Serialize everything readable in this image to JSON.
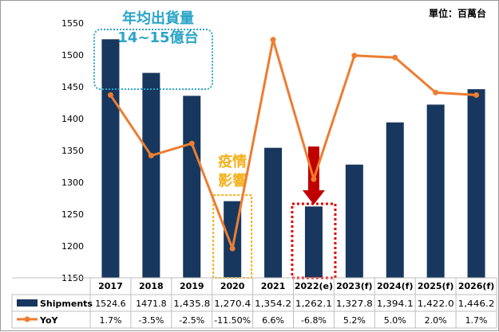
{
  "chart_data": {
    "type": "bar+line",
    "unit_label": "單位：百萬台",
    "categories": [
      "2017",
      "2018",
      "2019",
      "2020",
      "2021",
      "2022(e)",
      "2023(f)",
      "2024(f)",
      "2025(f)",
      "2026(f)"
    ],
    "ylim": [
      1150,
      1550
    ],
    "yticks": [
      1150,
      1200,
      1250,
      1300,
      1350,
      1400,
      1450,
      1500,
      1550
    ],
    "series": [
      {
        "name": "Shipments",
        "kind": "bar",
        "color": "#17375e",
        "values": [
          1524.6,
          1471.8,
          1435.8,
          1270.4,
          1354.2,
          1262.1,
          1327.8,
          1394.1,
          1422.0,
          1446.2
        ],
        "labels": [
          "1524.6",
          "1471.8",
          "1,435.8",
          "1,270.4",
          "1,354.2",
          "1,262.1",
          "1,327.8",
          "1,394.1",
          "1,422.0",
          "1,446.2"
        ]
      },
      {
        "name": "YoY",
        "kind": "line",
        "color": "#ed7d31",
        "values_pct": [
          1.7,
          -3.5,
          -2.5,
          -11.5,
          6.6,
          -6.8,
          5.2,
          5.0,
          2.0,
          1.7
        ],
        "labels": [
          "1.7%",
          "-3.5%",
          "-2.5%",
          "-11.50%",
          "6.6%",
          "-6.8%",
          "5.2%",
          "5.0%",
          "2.0%",
          "1.7%"
        ]
      }
    ],
    "annotations": [
      {
        "name": "annual-range",
        "lines": [
          "年均出貨量",
          "14~15億台"
        ],
        "color": "#2aa4c8",
        "spans": [
          "2017",
          "2019"
        ]
      },
      {
        "name": "pandemic",
        "lines": [
          "疫情",
          "影響"
        ],
        "color": "#f2b11c",
        "spans": [
          "2020"
        ]
      },
      {
        "name": "down-arrow",
        "color": "#c00000",
        "spans": [
          "2022(e)"
        ]
      }
    ],
    "grid": false,
    "legend": "table-bottom"
  }
}
